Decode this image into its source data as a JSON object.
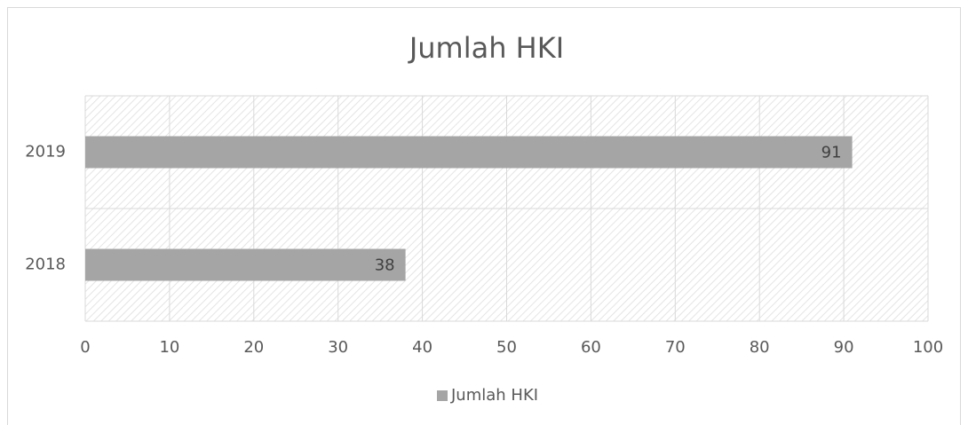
{
  "chart_data": {
    "type": "bar",
    "orientation": "horizontal",
    "title": "Jumlah HKI",
    "categories": [
      "2018",
      "2019"
    ],
    "series": [
      {
        "name": "Jumlah HKI",
        "color": "#a5a5a5",
        "values": [
          38,
          91
        ]
      }
    ],
    "xlim": [
      0,
      100
    ],
    "xticks": [
      0,
      10,
      20,
      30,
      40,
      50,
      60,
      70,
      80,
      90,
      100
    ],
    "grid": true,
    "legend": "bottom"
  }
}
